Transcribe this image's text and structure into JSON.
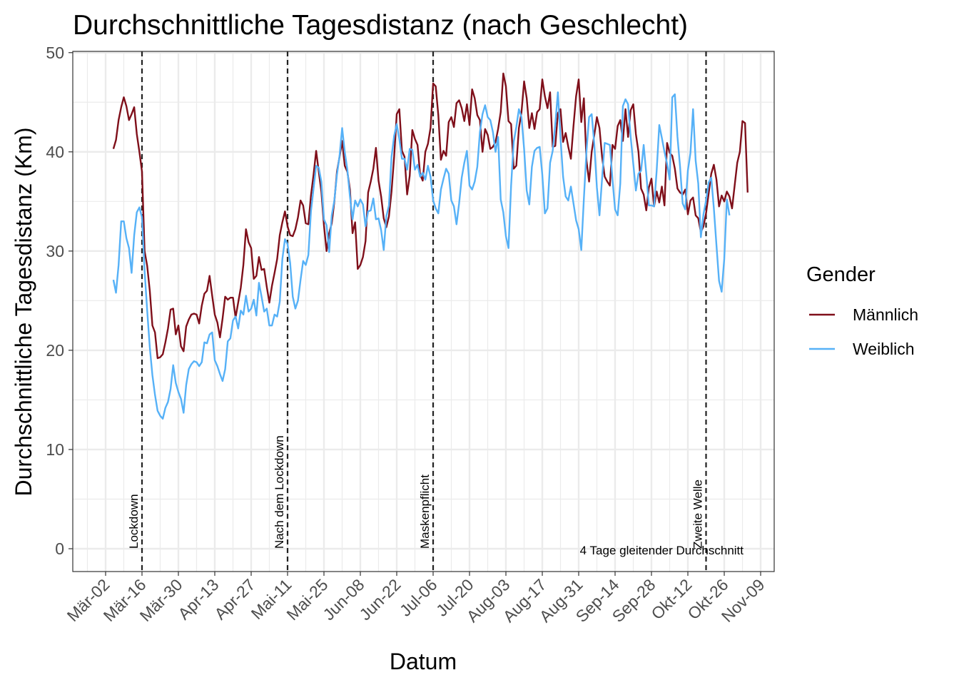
{
  "chart_data": {
    "type": "line",
    "title": "Durchschnittliche Tagesdistanz (nach Geschlecht)",
    "xlabel": "Datum",
    "ylabel": "Durchschnittliche Tagesdistanz (Km)",
    "ylim": [
      0,
      50
    ],
    "yticks": [
      0,
      10,
      20,
      30,
      40,
      50
    ],
    "x_start": "2020-03-05",
    "x_tick_labels": [
      "Mär-02",
      "Mär-16",
      "Mär-30",
      "Apr-13",
      "Apr-27",
      "Mai-11",
      "Mai-25",
      "Jun-08",
      "Jun-22",
      "Jul-06",
      "Jul-20",
      "Aug-03",
      "Aug-17",
      "Aug-31",
      "Sep-14",
      "Sep-28",
      "Okt-12",
      "Okt-26",
      "Nov-09"
    ],
    "grid": true,
    "legend": {
      "title": "Gender",
      "position": "right"
    },
    "vlines": [
      {
        "date": "Mär-16",
        "label": "Lockdown"
      },
      {
        "date": "Mai-11",
        "label": "Nach dem Lockdown"
      },
      {
        "date": "Jul-06",
        "label": "Maskenpflicht"
      },
      {
        "date": "Okt-19",
        "label": "Zweite Welle"
      }
    ],
    "caption": "4 Tage gleitender Durchschnitt",
    "series": [
      {
        "name": "Männlich",
        "color": "#7f0f1a",
        "values": [
          40.3,
          41.2,
          43.2,
          44.5,
          45.5,
          44.6,
          43.2,
          43.8,
          44.5,
          41.8,
          40,
          38,
          30,
          28.5,
          26,
          22.5,
          21.8,
          19.2,
          19.3,
          19.6,
          20.8,
          22.2,
          24.1,
          24.2,
          21.6,
          22.5,
          20.4,
          19.9,
          22.4,
          23.1,
          23.6,
          23.7,
          23.6,
          22.7,
          24.5,
          25.7,
          26,
          27.5,
          25.5,
          23.6,
          22.8,
          21.3,
          23.2,
          25.4,
          25.1,
          25.3,
          25.3,
          23.3,
          24.8,
          26.3,
          28.6,
          32.2,
          30.9,
          30.3,
          27.2,
          27.5,
          29.4,
          28.1,
          28.2,
          26.4,
          24.8,
          26.5,
          27.8,
          29.2,
          31.6,
          32.9,
          34,
          32.5,
          31.6,
          31.5,
          32.2,
          33.4,
          35.1,
          34.6,
          32.8,
          32.7,
          35.6,
          37.7,
          40.1,
          38,
          36,
          32.6,
          30,
          31.8,
          32.8,
          35,
          38,
          39.5,
          41.1,
          38.6,
          38,
          36.2,
          31.8,
          32.9,
          28.2,
          28.6,
          29.4,
          31,
          35.9,
          37,
          38.3,
          40.4,
          37.1,
          35.5,
          33.3,
          32.4,
          33.5,
          36,
          39.5,
          43.8,
          44.3,
          40.1,
          39.5,
          35.7,
          37.6,
          42.2,
          41.3,
          40.7,
          37.7,
          37.1,
          40,
          40.8,
          42.4,
          46.9,
          46.6,
          43.7,
          39.2,
          40.1,
          39.6,
          43,
          43.5,
          42.5,
          44.9,
          45.2,
          44.4,
          43.1,
          44.8,
          42.7,
          46.3,
          45.4,
          43.7,
          43.2,
          40,
          42.3,
          41.7,
          40.3,
          40.5,
          41,
          42.3,
          44,
          47.9,
          46.6,
          43.1,
          42.8,
          38.3,
          38.6,
          42.4,
          44,
          47.1,
          45.4,
          42.4,
          43.9,
          42.3,
          44,
          44.3,
          47.3,
          45.6,
          44.4,
          46,
          40.5,
          40.6,
          43.9,
          44.3,
          41,
          41.9,
          40.5,
          39.3,
          42.6,
          45.6,
          47.3,
          43,
          45.4,
          39.1,
          37,
          40,
          41.7,
          43.5,
          42.4,
          39.5,
          37.5,
          37,
          36.6,
          40.7,
          40.3,
          42.6,
          43.2,
          41.1,
          44.3,
          41.5,
          44.2,
          44.8,
          41.8,
          40,
          36.3,
          35.7,
          34.1,
          36.4,
          37.3,
          34.5,
          36,
          34.9,
          36.5,
          34.6,
          40.9,
          39.9,
          39.6,
          38.3,
          36.3,
          35.9,
          35.7,
          36.2,
          33.7,
          35.1,
          35.4,
          33.6,
          33.3,
          31.9,
          32.5,
          33.8,
          35.8,
          37.8,
          38.7,
          37.2,
          34.5,
          35.6,
          35,
          36,
          35.5,
          34.3,
          36.6,
          38.9,
          40,
          43.1,
          42.9,
          35.9
        ]
      },
      {
        "name": "Weiblich",
        "color": "#56b1f7",
        "values": [
          27.1,
          25.8,
          28.6,
          33,
          33,
          31.3,
          30.3,
          27.8,
          31.6,
          33.9,
          34.4,
          33.4,
          28,
          24,
          20.3,
          17.5,
          15.5,
          13.9,
          13.4,
          13.1,
          14.2,
          14.8,
          16.1,
          18.5,
          16.7,
          15.8,
          15.1,
          13.7,
          16.5,
          18.1,
          18.6,
          18.9,
          18.8,
          18.4,
          18.8,
          20.8,
          20.7,
          21.6,
          21.8,
          19,
          18.4,
          17.6,
          16.9,
          18.1,
          20.9,
          21.2,
          23,
          23.4,
          22.2,
          24,
          23.6,
          25.5,
          23.9,
          24.2,
          25.1,
          23.5,
          26.8,
          25.4,
          23.9,
          24.2,
          22.5,
          22.5,
          23.6,
          23.4,
          24.9,
          29.2,
          31.2,
          30.7,
          28.8,
          25.4,
          24.2,
          25,
          27.1,
          29,
          28.6,
          29.6,
          34,
          36.3,
          38.6,
          38.4,
          37,
          33.2,
          32.6,
          29.9,
          33.6,
          35.1,
          37.7,
          39.6,
          42.4,
          40,
          38.2,
          35.5,
          33.2,
          35.1,
          34.5,
          35.2,
          34.7,
          32.5,
          34,
          34.1,
          35.3,
          33.2,
          33.3,
          32.1,
          30.1,
          33.5,
          34.6,
          39.5,
          41.6,
          42.8,
          41.3,
          39.3,
          39.3,
          38.2,
          40.3,
          40.2,
          38.2,
          38.7,
          37.5,
          37.9,
          37.2,
          38.6,
          37.5,
          35.1,
          34.3,
          33.8,
          36.2,
          37.3,
          38.3,
          37.8,
          35.1,
          34.5,
          32.7,
          34.8,
          37.4,
          38.9,
          40.1,
          36.6,
          36.2,
          37,
          38.5,
          42,
          43.8,
          44.7,
          43.5,
          43.2,
          42,
          40,
          41.5,
          35.2,
          33.9,
          31.5,
          30.3,
          36.6,
          41,
          42.5,
          44.3,
          43.5,
          40.3,
          36.1,
          34.7,
          38.5,
          40.1,
          40.4,
          40.5,
          37.7,
          33.8,
          34.3,
          38.9,
          40.1,
          42.8,
          46,
          41.4,
          37.5,
          35.5,
          35.1,
          36.5,
          34.8,
          33.1,
          32.2,
          30.1,
          35.3,
          40.1,
          43.5,
          43.8,
          40.8,
          36.4,
          33.6,
          37.3,
          40.9,
          40.8,
          40.7,
          37.2,
          34.2,
          33.6,
          36.8,
          44.6,
          45.3,
          44.8,
          41.5,
          38.8,
          36.1,
          37.8,
          38.1,
          40.7,
          37.8,
          34.6,
          34.6,
          34.5,
          38.1,
          42.7,
          41.4,
          40,
          38.8,
          37.2,
          45.5,
          45.8,
          41.5,
          38.5,
          34.8,
          34.2,
          38.1,
          39.9,
          44.3,
          39.1,
          36.8,
          31.4,
          33.7,
          35.1,
          36.9,
          37.4,
          34.3,
          30.6,
          27,
          25.9,
          29.2,
          35.2,
          33.6
        ]
      }
    ]
  }
}
